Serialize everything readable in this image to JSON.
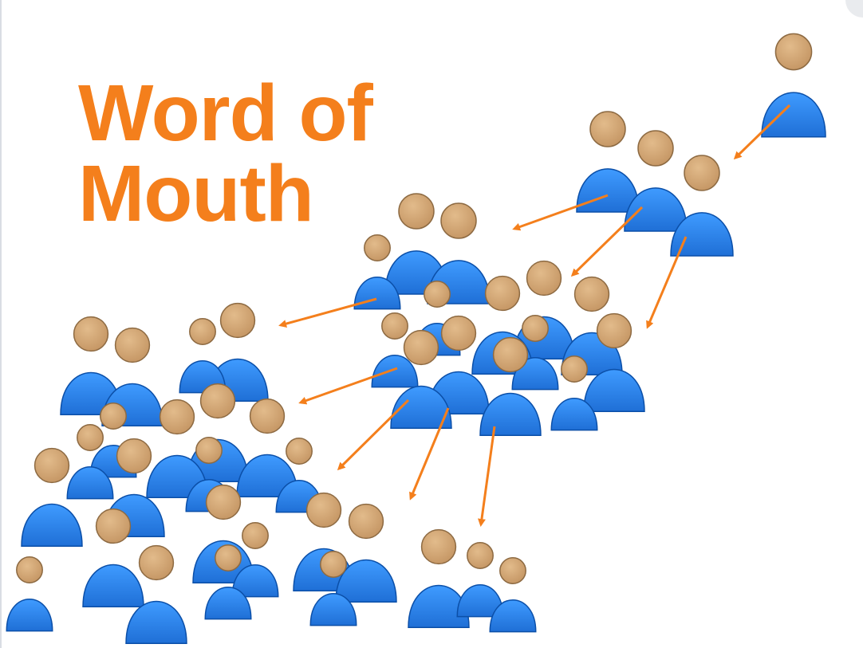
{
  "heading": {
    "line1": "Word of",
    "line2": "Mouth"
  },
  "colors": {
    "heading": "#f47f1c",
    "arrow": "#f47f1c",
    "body": "#1f77e0",
    "body_dark": "#0b4fa8",
    "head": "#d4a874",
    "head_dark": "#8d6a42"
  },
  "icons": {
    "person": "person-icon",
    "arrow": "arrow-icon"
  }
}
